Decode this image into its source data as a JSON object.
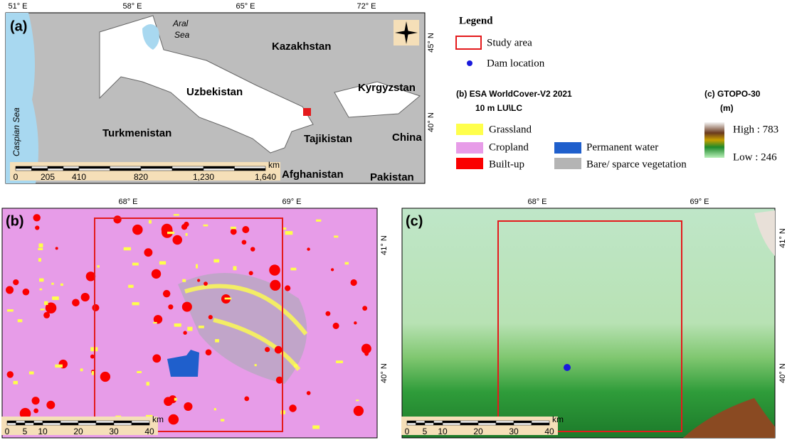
{
  "panel_a": {
    "label": "(a)",
    "lon_labels": [
      "51° E",
      "58° E",
      "65° E",
      "72° E"
    ],
    "lat_labels": [
      "45° N",
      "40° N"
    ],
    "aral_sea": [
      "Aral",
      "Sea"
    ],
    "caspian_sea": "Caspian Sea",
    "places": [
      "Kazakhstan",
      "Uzbekistan",
      "Kyrgyzstan",
      "Turkmenistan",
      "Tajikistan",
      "China",
      "Afghanistan",
      "Pakistan"
    ],
    "scale": {
      "unit": "km",
      "ticks": [
        "0",
        "205",
        "410",
        "820",
        "1,230",
        "1,640"
      ]
    }
  },
  "legend": {
    "title": "Legend",
    "study_area": "Study area",
    "dam": "Dam location",
    "lulc_title": [
      "(b) ESA WorldCover-V2 2021",
      "10 m LU\\LC"
    ],
    "classes": [
      "Grassland",
      "Cropland",
      "Built-up",
      "Permanent water",
      "Bare/ sparce vegetation"
    ],
    "dem_title": [
      "(c) GTOPO-30",
      "(m)"
    ],
    "high": "High : 783",
    "low": "Low : 246"
  },
  "panel_b": {
    "label": "(b)",
    "lon_labels": [
      "68° E",
      "69° E"
    ],
    "lat_labels": [
      "41° N",
      "40° N"
    ],
    "scale": {
      "unit": "km",
      "ticks": [
        "0",
        "5",
        "10",
        "20",
        "30",
        "40"
      ]
    }
  },
  "panel_c": {
    "label": "(c)",
    "lon_labels": [
      "68° E",
      "69° E"
    ],
    "lat_labels": [
      "41° N",
      "40° N"
    ],
    "scale": {
      "unit": "km",
      "ticks": [
        "0",
        "5",
        "10",
        "20",
        "30",
        "40"
      ]
    }
  }
}
